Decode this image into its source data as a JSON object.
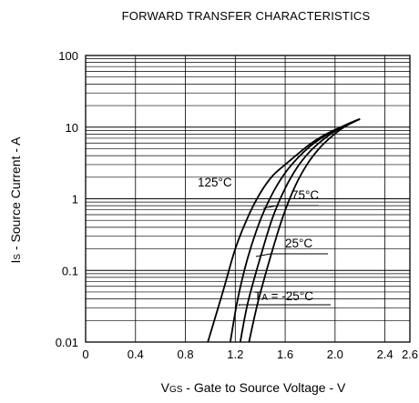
{
  "chart_data": {
    "type": "line",
    "title": "FORWARD TRANSFER CHARACTERISTICS",
    "xlabel": {
      "prefix": "V",
      "sub": "GS",
      "rest": " - Gate to Source Voltage - V"
    },
    "ylabel": {
      "prefix": "I",
      "sub": "S",
      "rest": " - Source Current - A"
    },
    "xlim": [
      0,
      2.6
    ],
    "ylim": [
      0.01,
      100
    ],
    "yscale": "log",
    "grid": true,
    "x_ticks": [
      0,
      0.4,
      0.8,
      1.2,
      1.6,
      2.0,
      2.4,
      2.6
    ],
    "x_tick_labels": [
      "0",
      "0.4",
      "0.8",
      "1.2",
      "1.6",
      "2.0",
      "2.4",
      "2.6"
    ],
    "y_ticks": [
      0.01,
      0.1,
      1,
      10,
      100
    ],
    "y_tick_labels": [
      "0.01",
      "0.1",
      "1",
      "10",
      "100"
    ],
    "series": [
      {
        "name": "125°C",
        "label": {
          "prefix": "",
          "sub": "",
          "rest": "125°C"
        },
        "points": [
          [
            0.98,
            0.01
          ],
          [
            1.1,
            0.05
          ],
          [
            1.2,
            0.2
          ],
          [
            1.3,
            0.55
          ],
          [
            1.4,
            1.2
          ],
          [
            1.5,
            2.1
          ],
          [
            1.6,
            3.0
          ],
          [
            1.7,
            4.2
          ],
          [
            1.8,
            5.8
          ],
          [
            1.9,
            7.5
          ],
          [
            2.0,
            9.2
          ],
          [
            2.1,
            11
          ],
          [
            2.2,
            13
          ]
        ]
      },
      {
        "name": "75°C",
        "label": {
          "prefix": "",
          "sub": "",
          "rest": "75°C"
        },
        "points": [
          [
            1.16,
            0.01
          ],
          [
            1.22,
            0.04
          ],
          [
            1.3,
            0.15
          ],
          [
            1.4,
            0.5
          ],
          [
            1.5,
            1.2
          ],
          [
            1.6,
            2.3
          ],
          [
            1.7,
            3.7
          ],
          [
            1.8,
            5.4
          ],
          [
            1.9,
            7.2
          ],
          [
            2.0,
            9.0
          ],
          [
            2.1,
            11
          ],
          [
            2.2,
            13
          ]
        ]
      },
      {
        "name": "25°C",
        "label": {
          "prefix": "",
          "sub": "",
          "rest": "25°C"
        },
        "points": [
          [
            1.24,
            0.01
          ],
          [
            1.3,
            0.035
          ],
          [
            1.4,
            0.15
          ],
          [
            1.5,
            0.55
          ],
          [
            1.6,
            1.4
          ],
          [
            1.7,
            2.8
          ],
          [
            1.8,
            4.6
          ],
          [
            1.9,
            6.6
          ],
          [
            2.0,
            8.8
          ],
          [
            2.1,
            11
          ],
          [
            2.2,
            13
          ]
        ]
      },
      {
        "name": "-25°C",
        "label": {
          "prefix": "T",
          "sub": "A",
          "rest": " = -25°C"
        },
        "points": [
          [
            1.31,
            0.01
          ],
          [
            1.38,
            0.035
          ],
          [
            1.48,
            0.15
          ],
          [
            1.58,
            0.55
          ],
          [
            1.68,
            1.5
          ],
          [
            1.78,
            3.1
          ],
          [
            1.88,
            5.2
          ],
          [
            1.98,
            7.6
          ],
          [
            2.08,
            10.2
          ],
          [
            2.2,
            13
          ]
        ]
      }
    ],
    "colors": {
      "line": "#000000",
      "grid": "#000000",
      "background": "#ffffff"
    }
  }
}
